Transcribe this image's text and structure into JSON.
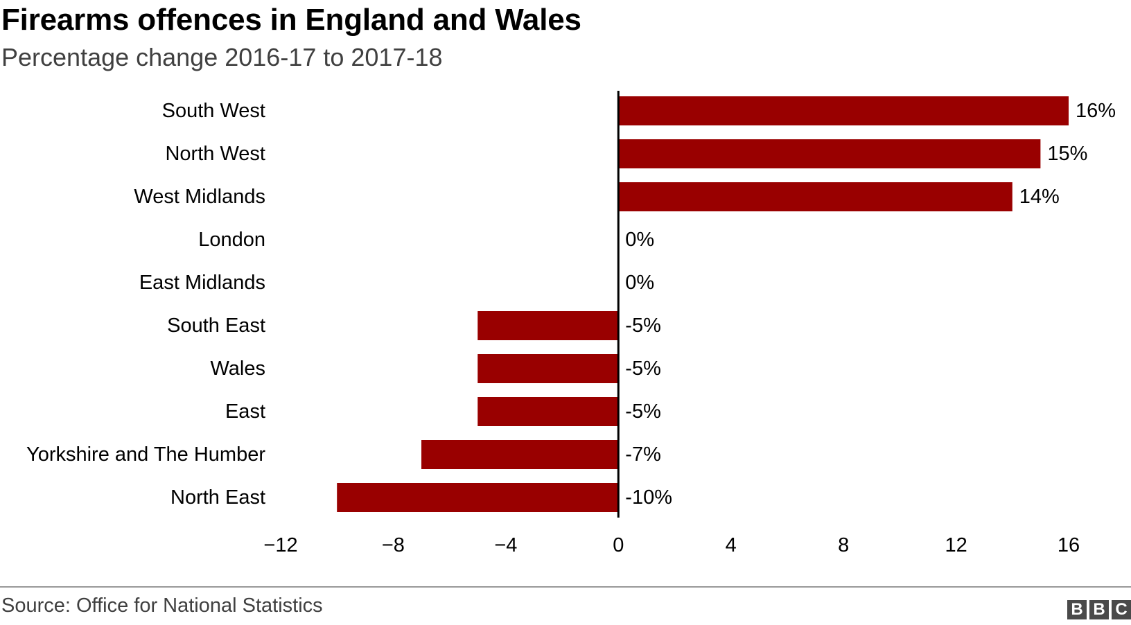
{
  "header": {
    "title": "Firearms offences in England and Wales",
    "subtitle": "Percentage change 2016-17 to 2017-18"
  },
  "footer": {
    "source": "Source: Office for National Statistics",
    "logo_letters": [
      "B",
      "B",
      "C"
    ]
  },
  "colors": {
    "bar": "#990000",
    "axis": "#000000"
  },
  "chart_data": {
    "type": "bar",
    "orientation": "horizontal",
    "categories": [
      "South West",
      "North West",
      "West Midlands",
      "London",
      "East Midlands",
      "South East",
      "Wales",
      "East",
      "Yorkshire and The Humber",
      "North East"
    ],
    "values": [
      16,
      15,
      14,
      0,
      0,
      -5,
      -5,
      -5,
      -7,
      -10
    ],
    "data_labels": [
      "16%",
      "15%",
      "14%",
      "0%",
      "0%",
      "-5%",
      "-5%",
      "-5%",
      "-7%",
      "-10%"
    ],
    "xlim": [
      -12,
      16
    ],
    "xticks": [
      -12,
      -8,
      -4,
      0,
      4,
      8,
      12,
      16
    ],
    "xtick_labels": [
      "−12",
      "−8",
      "−4",
      "0",
      "4",
      "8",
      "12",
      "16"
    ],
    "grid": false,
    "legend": "none"
  }
}
